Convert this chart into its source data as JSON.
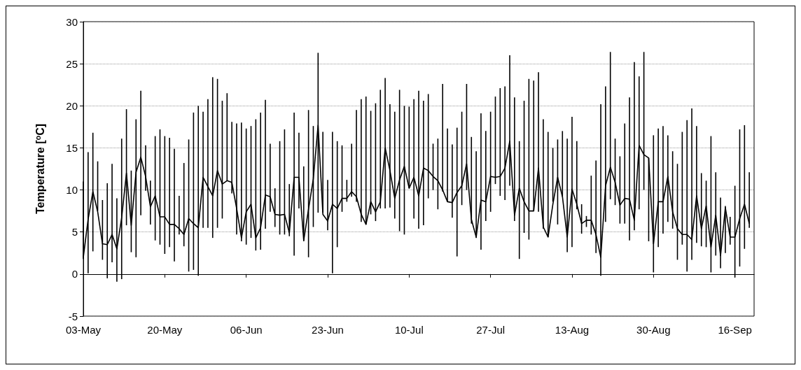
{
  "chart_data": {
    "type": "line",
    "ylabel": "Temperature [$^{o}$C]",
    "x": [
      "--05-03",
      "--05-04",
      "--05-05",
      "--05-06",
      "--05-07",
      "--05-08",
      "--05-09",
      "--05-10",
      "--05-11",
      "--05-12",
      "--05-13",
      "--05-14",
      "--05-15",
      "--05-16",
      "--05-17",
      "--05-18",
      "--05-19",
      "--05-20",
      "--05-21",
      "--05-22",
      "--05-23",
      "--05-24",
      "--05-25",
      "--05-26",
      "--05-27",
      "--05-28",
      "--05-29",
      "--05-30",
      "--05-31",
      "--06-01",
      "--06-02",
      "--06-03",
      "--06-04",
      "--06-05",
      "--06-06",
      "--06-07",
      "--06-08",
      "--06-09",
      "--06-10",
      "--06-11",
      "--06-12",
      "--06-13",
      "--06-14",
      "--06-15",
      "--06-16",
      "--06-17",
      "--06-18",
      "--06-19",
      "--06-20",
      "--06-21",
      "--06-22",
      "--06-23",
      "--06-24",
      "--06-25",
      "--06-26",
      "--06-27",
      "--06-28",
      "--06-29",
      "--06-30",
      "--07-01",
      "--07-02",
      "--07-03",
      "--07-04",
      "--07-05",
      "--07-06",
      "--07-07",
      "--07-08",
      "--07-09",
      "--07-10",
      "--07-11",
      "--07-12",
      "--07-13",
      "--07-14",
      "--07-15",
      "--07-16",
      "--07-17",
      "--07-18",
      "--07-19",
      "--07-20",
      "--07-21",
      "--07-22",
      "--07-23",
      "--07-24",
      "--07-25",
      "--07-26",
      "--07-27",
      "--07-28",
      "--07-29",
      "--07-30",
      "--07-31",
      "--08-01",
      "--08-02",
      "--08-03",
      "--08-04",
      "--08-05",
      "--08-06",
      "--08-07",
      "--08-08",
      "--08-09",
      "--08-10",
      "--08-11",
      "--08-12",
      "--08-13",
      "--08-14",
      "--08-15",
      "--08-16",
      "--08-17",
      "--08-18",
      "--08-19",
      "--08-20",
      "--08-21",
      "--08-22",
      "--08-23",
      "--08-24",
      "--08-25",
      "--08-26",
      "--08-27",
      "--08-28",
      "--08-29",
      "--08-30",
      "--08-31",
      "--09-01",
      "--09-02",
      "--09-03",
      "--09-04",
      "--09-05",
      "--09-06",
      "--09-07",
      "--09-08",
      "--09-09",
      "--09-10",
      "--09-11",
      "--09-12",
      "--09-13",
      "--09-14",
      "--09-15",
      "--09-16",
      "--09-17",
      "--09-18",
      "--09-19"
    ],
    "series": [
      {
        "color": "#000000",
        "values": [
          2.0,
          6.5,
          9.8,
          7.4,
          3.6,
          3.5,
          4.7,
          3.0,
          6.7,
          12.0,
          5.8,
          12.1,
          13.9,
          11.6,
          8.0,
          9.3,
          6.8,
          6.8,
          5.9,
          5.9,
          5.4,
          4.7,
          6.6,
          6.0,
          5.5,
          11.5,
          10.4,
          9.3,
          12.3,
          10.7,
          11.1,
          10.9,
          7.8,
          4.3,
          7.4,
          8.3,
          4.3,
          5.5,
          9.4,
          9.2,
          7.1,
          7.0,
          7.1,
          4.9,
          11.5,
          11.5,
          4.0,
          7.7,
          11.3,
          17.7,
          7.1,
          6.3,
          8.3,
          7.8,
          9.0,
          9.0,
          9.8,
          9.2,
          7.1,
          5.9,
          8.6,
          7.4,
          8.6,
          15.0,
          12.3,
          9.0,
          11.2,
          12.8,
          10.2,
          11.5,
          9.3,
          12.6,
          12.3,
          11.6,
          11.1,
          10.0,
          8.6,
          8.5,
          9.7,
          10.5,
          13.1,
          6.5,
          4.4,
          8.8,
          8.6,
          11.6,
          11.5,
          11.6,
          12.6,
          15.8,
          7.0,
          10.2,
          8.6,
          7.5,
          7.5,
          12.6,
          5.6,
          4.4,
          8.3,
          11.5,
          9.2,
          4.4,
          10.1,
          8.3,
          6.0,
          6.4,
          6.4,
          4.7,
          2.0,
          10.5,
          12.7,
          10.9,
          8.2,
          9.0,
          8.9,
          6.4,
          15.3,
          14.2,
          13.8,
          3.6,
          8.6,
          8.6,
          11.6,
          7.4,
          5.4,
          4.7,
          4.7,
          4.1,
          9.3,
          5.4,
          8.1,
          3.2,
          7.0,
          2.2,
          7.9,
          4.4,
          4.4,
          6.6,
          8.3,
          6.0
        ],
        "errors": [
          [
            1.8,
            11.0
          ],
          [
            0.1,
            14.5
          ],
          [
            2.7,
            16.8
          ],
          [
            7.5,
            13.4
          ],
          [
            1.7,
            8.8
          ],
          [
            -0.5,
            10.8
          ],
          [
            1.4,
            13.1
          ],
          [
            -0.9,
            9.0
          ],
          [
            -0.6,
            16.1
          ],
          [
            5.8,
            19.6
          ],
          [
            2.6,
            12.3
          ],
          [
            2.0,
            18.4
          ],
          [
            7.0,
            21.8
          ],
          [
            9.9,
            15.3
          ],
          [
            5.9,
            11.1
          ],
          [
            4.0,
            16.4
          ],
          [
            3.5,
            17.2
          ],
          [
            2.4,
            16.4
          ],
          [
            3.2,
            16.2
          ],
          [
            1.5,
            14.9
          ],
          [
            4.7,
            9.3
          ],
          [
            3.3,
            13.2
          ],
          [
            0.3,
            16.0
          ],
          [
            0.5,
            19.2
          ],
          [
            -0.2,
            20.0
          ],
          [
            5.5,
            19.3
          ],
          [
            5.5,
            20.8
          ],
          [
            4.3,
            23.4
          ],
          [
            5.5,
            23.2
          ],
          [
            6.6,
            20.6
          ],
          [
            11.1,
            21.5
          ],
          [
            9.6,
            18.1
          ],
          [
            4.7,
            17.9
          ],
          [
            3.9,
            18.0
          ],
          [
            3.5,
            17.3
          ],
          [
            4.3,
            17.6
          ],
          [
            2.8,
            18.4
          ],
          [
            2.9,
            19.2
          ],
          [
            5.4,
            20.7
          ],
          [
            7.4,
            15.5
          ],
          [
            5.6,
            10.2
          ],
          [
            4.7,
            15.8
          ],
          [
            4.7,
            17.2
          ],
          [
            4.5,
            10.7
          ],
          [
            2.2,
            19.2
          ],
          [
            7.8,
            16.8
          ],
          [
            3.9,
            12.8
          ],
          [
            2.0,
            19.5
          ],
          [
            5.6,
            17.6
          ],
          [
            7.3,
            26.3
          ],
          [
            7.3,
            16.9
          ],
          [
            5.2,
            11.2
          ],
          [
            0.1,
            16.9
          ],
          [
            3.2,
            15.8
          ],
          [
            7.4,
            15.3
          ],
          [
            8.6,
            11.2
          ],
          [
            9.2,
            15.5
          ],
          [
            8.6,
            19.5
          ],
          [
            6.2,
            20.8
          ],
          [
            5.9,
            21.1
          ],
          [
            7.1,
            19.4
          ],
          [
            6.3,
            20.3
          ],
          [
            7.8,
            21.9
          ],
          [
            7.8,
            23.3
          ],
          [
            7.9,
            20.2
          ],
          [
            6.6,
            19.3
          ],
          [
            5.1,
            21.9
          ],
          [
            4.7,
            20.0
          ],
          [
            10.2,
            19.9
          ],
          [
            6.6,
            20.8
          ],
          [
            5.4,
            21.8
          ],
          [
            5.8,
            20.6
          ],
          [
            9.0,
            21.4
          ],
          [
            10.0,
            15.5
          ],
          [
            7.7,
            16.1
          ],
          [
            9.8,
            22.6
          ],
          [
            8.6,
            17.3
          ],
          [
            6.7,
            15.4
          ],
          [
            2.1,
            17.4
          ],
          [
            8.2,
            19.3
          ],
          [
            10.0,
            22.6
          ],
          [
            6.0,
            16.3
          ],
          [
            4.3,
            14.6
          ],
          [
            2.9,
            19.1
          ],
          [
            6.3,
            17.0
          ],
          [
            7.4,
            19.3
          ],
          [
            10.7,
            21.1
          ],
          [
            9.3,
            22.1
          ],
          [
            8.8,
            22.3
          ],
          [
            10.5,
            26.0
          ],
          [
            6.3,
            21.0
          ],
          [
            1.8,
            15.8
          ],
          [
            4.9,
            20.6
          ],
          [
            4.1,
            23.2
          ],
          [
            7.5,
            23.0
          ],
          [
            7.4,
            24.0
          ],
          [
            5.4,
            18.4
          ],
          [
            4.4,
            16.9
          ],
          [
            8.6,
            15.0
          ],
          [
            5.9,
            16.0
          ],
          [
            9.2,
            17.0
          ],
          [
            2.6,
            16.1
          ],
          [
            3.2,
            18.7
          ],
          [
            7.7,
            15.8
          ],
          [
            4.8,
            8.3
          ],
          [
            5.6,
            6.9
          ],
          [
            4.7,
            11.7
          ],
          [
            2.5,
            13.5
          ],
          [
            -0.2,
            20.2
          ],
          [
            6.2,
            22.3
          ],
          [
            8.9,
            26.4
          ],
          [
            8.2,
            16.1
          ],
          [
            6.0,
            14.0
          ],
          [
            6.0,
            17.9
          ],
          [
            4.0,
            21.0
          ],
          [
            5.2,
            25.2
          ],
          [
            7.7,
            23.5
          ],
          [
            10.0,
            26.4
          ],
          [
            3.9,
            13.8
          ],
          [
            0.2,
            16.5
          ],
          [
            3.2,
            17.3
          ],
          [
            4.8,
            17.6
          ],
          [
            6.2,
            16.5
          ],
          [
            5.4,
            14.6
          ],
          [
            1.7,
            13.1
          ],
          [
            3.5,
            16.9
          ],
          [
            0.3,
            18.3
          ],
          [
            1.7,
            19.7
          ],
          [
            3.7,
            17.6
          ],
          [
            3.3,
            12.0
          ],
          [
            3.2,
            11.1
          ],
          [
            0.2,
            16.4
          ],
          [
            2.2,
            12.1
          ],
          [
            0.7,
            9.1
          ],
          [
            2.5,
            8.1
          ],
          [
            3.5,
            6.8
          ],
          [
            -0.4,
            10.5
          ],
          [
            0.9,
            17.2
          ],
          [
            3.0,
            17.7
          ],
          [
            5.5,
            12.1
          ]
        ]
      }
    ],
    "xlim": [
      "--05-03",
      "--09-20"
    ],
    "xticks": [
      {
        "value": "--05-03",
        "label": "03-May"
      },
      {
        "value": "--05-20",
        "label": "20-May"
      },
      {
        "value": "--06-06",
        "label": "06-Jun"
      },
      {
        "value": "--06-23",
        "label": "23-Jun"
      },
      {
        "value": "--07-10",
        "label": "10-Jul"
      },
      {
        "value": "--07-27",
        "label": "27-Jul"
      },
      {
        "value": "--08-13",
        "label": "13-Aug"
      },
      {
        "value": "--08-30",
        "label": "30-Aug"
      },
      {
        "value": "--09-16",
        "label": "16-Sep"
      }
    ],
    "ylim": [
      -5,
      30
    ],
    "yticks": [
      -5,
      0,
      5,
      10,
      15,
      20,
      25,
      30
    ],
    "grid": "y",
    "marker": "none",
    "line_style": "solid"
  }
}
